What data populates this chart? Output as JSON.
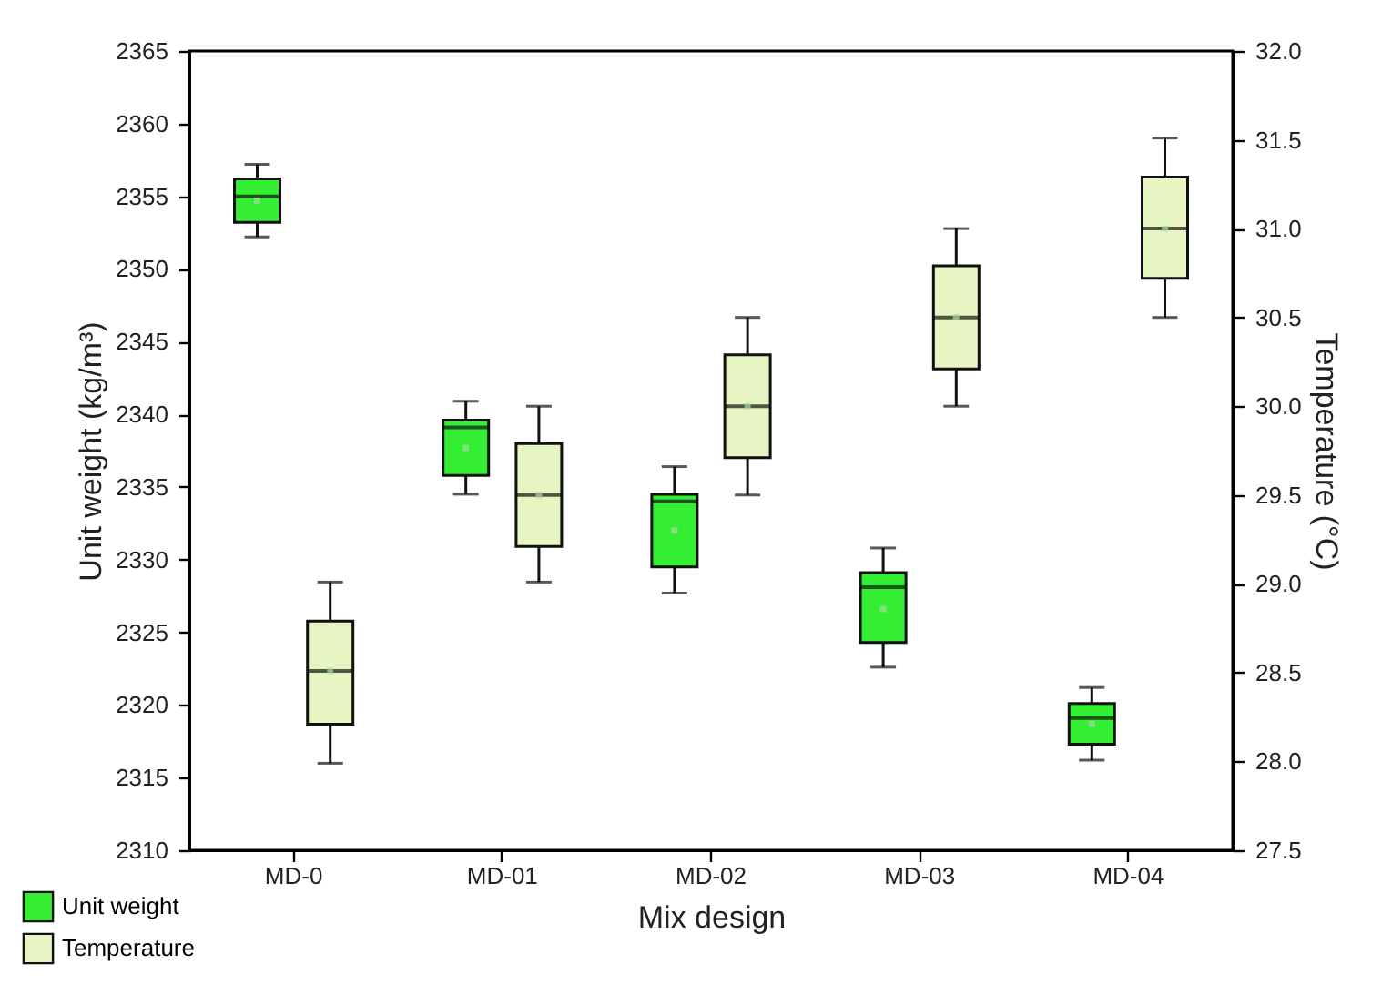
{
  "chart_data": {
    "type": "box",
    "xlabel": "Mix design",
    "ylabel": "Unit weight (kg/m³)",
    "y2label": "Temperature (°C)",
    "categories": [
      "MD-0",
      "MD-01",
      "MD-02",
      "MD-03",
      "MD-04"
    ],
    "series": [
      {
        "name": "Unit weight",
        "color": "#33ee33",
        "boxes": [
          {
            "low": 2352.2,
            "q1": 2353.2,
            "median": 2355.0,
            "q3": 2356.2,
            "high": 2357.2,
            "mean": 2354.7
          },
          {
            "low": 2334.5,
            "q1": 2335.8,
            "median": 2339.1,
            "q3": 2339.6,
            "high": 2340.9,
            "mean": 2337.7
          },
          {
            "low": 2327.7,
            "q1": 2329.5,
            "median": 2334.0,
            "q3": 2334.5,
            "high": 2336.4,
            "mean": 2332.0
          },
          {
            "low": 2322.6,
            "q1": 2324.3,
            "median": 2328.1,
            "q3": 2329.1,
            "high": 2330.8,
            "mean": 2326.6
          },
          {
            "low": 2316.2,
            "q1": 2317.3,
            "median": 2319.1,
            "q3": 2320.1,
            "high": 2321.2,
            "mean": 2318.7
          }
        ]
      },
      {
        "name": "Temperature",
        "color": "#e6f5c1",
        "axis": "y2",
        "boxes": [
          {
            "low": 27.99,
            "q1": 28.21,
            "median": 28.51,
            "q3": 28.79,
            "high": 29.01,
            "mean": 28.51
          },
          {
            "low": 29.01,
            "q1": 29.21,
            "median": 29.5,
            "q3": 29.79,
            "high": 30.0,
            "mean": 29.5
          },
          {
            "low": 29.5,
            "q1": 29.71,
            "median": 30.0,
            "q3": 30.29,
            "high": 30.5,
            "mean": 30.0
          },
          {
            "low": 30.0,
            "q1": 30.21,
            "median": 30.5,
            "q3": 30.79,
            "high": 31.0,
            "mean": 30.5
          },
          {
            "low": 30.5,
            "q1": 30.72,
            "median": 31.0,
            "q3": 31.29,
            "high": 31.51,
            "mean": 31.0
          }
        ]
      }
    ],
    "ylim": [
      2310,
      2365
    ],
    "yticks": [
      2310,
      2315,
      2320,
      2325,
      2330,
      2335,
      2340,
      2345,
      2350,
      2355,
      2360,
      2365
    ],
    "y2lim": [
      27.5,
      32.0
    ],
    "y2ticks": [
      {
        "value": 27.5,
        "label": "27.5"
      },
      {
        "value": 28,
        "label": "28.0"
      },
      {
        "value": 28.5,
        "label": "28.5"
      },
      {
        "value": 29,
        "label": "29.0"
      },
      {
        "value": 29.5,
        "label": "29.5"
      },
      {
        "value": 30,
        "label": "30.0"
      },
      {
        "value": 30.5,
        "label": "30.5"
      },
      {
        "value": 31,
        "label": "31.0"
      },
      {
        "value": 31.5,
        "label": "31.5"
      },
      {
        "value": 32,
        "label": "32.0"
      }
    ],
    "legend": "bottom left",
    "grid": false
  }
}
